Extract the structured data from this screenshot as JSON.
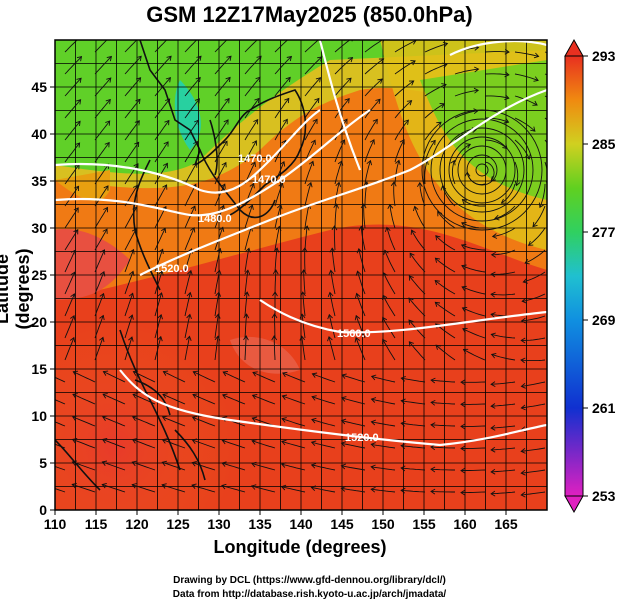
{
  "title": "GSM 12Z17May2025 (850.0hPa)",
  "xaxis": {
    "label": "Longitude (degrees)",
    "ticks": [
      "110",
      "115",
      "120",
      "125",
      "130",
      "135",
      "140",
      "145",
      "150",
      "155",
      "160",
      "165"
    ]
  },
  "yaxis": {
    "label": "Latitude  (degrees)",
    "ticks": [
      "0",
      "5",
      "10",
      "15",
      "20",
      "25",
      "30",
      "35",
      "40",
      "45"
    ]
  },
  "colorbar": {
    "ticks": [
      "293",
      "285",
      "277",
      "269",
      "261",
      "253"
    ],
    "range": [
      253,
      293
    ]
  },
  "contour_labels": [
    "1470.0",
    "1470.0",
    "1480.0",
    "1520.0",
    "1560.0",
    "1520.0"
  ],
  "credits": {
    "line1": "Drawing by DCL (https://www.gfd-dennou.org/library/dcl/)",
    "line2": "Data from http://database.rish.kyoto-u.ac.jp/arch/jmadata/"
  },
  "colors": {
    "warm": "#e83020",
    "mid": "#f08a10",
    "green": "#40d020",
    "cool": "#20c0d0",
    "blue": "#1030d0",
    "magenta": "#e020c0"
  }
}
